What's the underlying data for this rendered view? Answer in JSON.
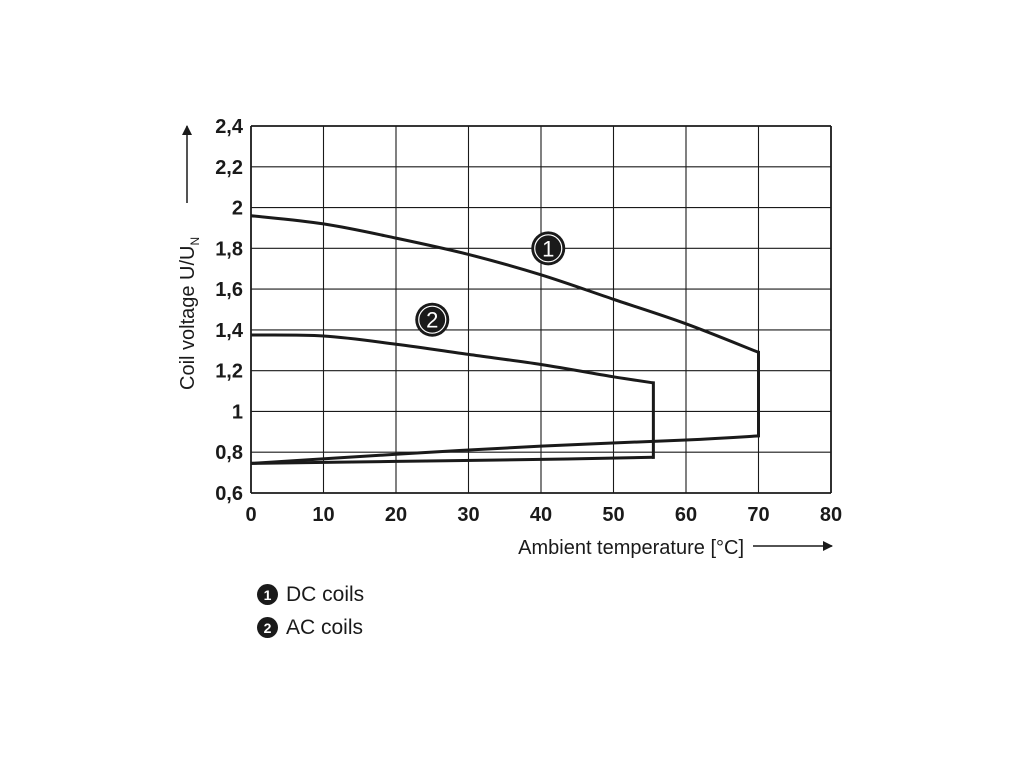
{
  "chart_data": {
    "type": "line",
    "xlabel": "Ambient temperature [°C]",
    "ylabel_main": "Coil voltage U/U",
    "ylabel_sub": "N",
    "xlim": [
      0,
      80
    ],
    "ylim": [
      0.6,
      2.4
    ],
    "x_ticks": [
      0,
      10,
      20,
      30,
      40,
      50,
      60,
      70,
      80
    ],
    "x_tick_labels": [
      "0",
      "10",
      "20",
      "30",
      "40",
      "50",
      "60",
      "70",
      "80"
    ],
    "y_ticks": [
      0.6,
      0.8,
      1.0,
      1.2,
      1.4,
      1.6,
      1.8,
      2.0,
      2.2,
      2.4
    ],
    "y_tick_labels": [
      "0,6",
      "0,8",
      "1",
      "1,2",
      "1,4",
      "1,6",
      "1,8",
      "2",
      "2,2",
      "2,4"
    ],
    "grid": true,
    "series": [
      {
        "name": "DC coils",
        "marker": "1",
        "marker_at": [
          41,
          1.8
        ],
        "upper": [
          [
            0,
            1.96
          ],
          [
            10,
            1.92
          ],
          [
            20,
            1.85
          ],
          [
            30,
            1.77
          ],
          [
            40,
            1.67
          ],
          [
            50,
            1.55
          ],
          [
            60,
            1.43
          ],
          [
            70,
            1.29
          ]
        ],
        "lower": [
          [
            0,
            0.745
          ],
          [
            20,
            0.79
          ],
          [
            40,
            0.83
          ],
          [
            60,
            0.86
          ],
          [
            70,
            0.88
          ]
        ]
      },
      {
        "name": "AC coils",
        "marker": "2",
        "marker_at": [
          25,
          1.45
        ],
        "upper": [
          [
            0,
            1.375
          ],
          [
            10,
            1.37
          ],
          [
            20,
            1.33
          ],
          [
            30,
            1.28
          ],
          [
            40,
            1.23
          ],
          [
            50,
            1.17
          ],
          [
            55.5,
            1.14
          ]
        ],
        "lower": [
          [
            0,
            0.745
          ],
          [
            20,
            0.755
          ],
          [
            40,
            0.765
          ],
          [
            55.5,
            0.775
          ]
        ]
      }
    ],
    "legend": [
      {
        "marker": "1",
        "label": "DC coils"
      },
      {
        "marker": "2",
        "label": "AC coils"
      }
    ],
    "legend_placement": "below"
  }
}
